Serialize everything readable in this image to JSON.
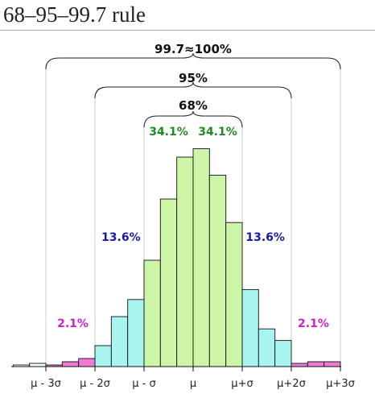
{
  "page": {
    "title": "68–95–99.7 rule"
  },
  "chart_data": {
    "type": "bar",
    "title": "",
    "xlabel": "",
    "ylabel": "",
    "x_ticks": [
      "μ - 3σ",
      "μ - 2σ",
      "μ - σ",
      "μ",
      "μ+σ",
      "μ+2σ",
      "μ+3σ"
    ],
    "x_range_sigma": [
      -3.6,
      3.6
    ],
    "bin_width_sigma": 0.333,
    "bins": [
      {
        "lo": -3.667,
        "hi": -3.333,
        "value": 0.5,
        "zone": "beyond3"
      },
      {
        "lo": -3.333,
        "hi": -3.0,
        "value": 1.0,
        "zone": "beyond3"
      },
      {
        "lo": -3.0,
        "hi": -2.667,
        "value": 0.5,
        "zone": "tail"
      },
      {
        "lo": -2.667,
        "hi": -2.333,
        "value": 1.5,
        "zone": "tail"
      },
      {
        "lo": -2.333,
        "hi": -2.0,
        "value": 2.5,
        "zone": "tail"
      },
      {
        "lo": -2.0,
        "hi": -1.667,
        "value": 6.5,
        "zone": "two"
      },
      {
        "lo": -1.667,
        "hi": -1.333,
        "value": 15.5,
        "zone": "two"
      },
      {
        "lo": -1.333,
        "hi": -1.0,
        "value": 20.8,
        "zone": "two"
      },
      {
        "lo": -1.0,
        "hi": -0.667,
        "value": 33.0,
        "zone": "one"
      },
      {
        "lo": -0.667,
        "hi": -0.333,
        "value": 52.0,
        "zone": "one"
      },
      {
        "lo": -0.333,
        "hi": 0.0,
        "value": 65.0,
        "zone": "one"
      },
      {
        "lo": 0.0,
        "hi": 0.333,
        "value": 67.6,
        "zone": "one"
      },
      {
        "lo": 0.333,
        "hi": 0.667,
        "value": 59.4,
        "zone": "one"
      },
      {
        "lo": 0.667,
        "hi": 1.0,
        "value": 44.7,
        "zone": "one"
      },
      {
        "lo": 1.0,
        "hi": 1.333,
        "value": 23.9,
        "zone": "two"
      },
      {
        "lo": 1.333,
        "hi": 1.667,
        "value": 11.7,
        "zone": "two"
      },
      {
        "lo": 1.667,
        "hi": 2.0,
        "value": 8.1,
        "zone": "two"
      },
      {
        "lo": 2.0,
        "hi": 2.333,
        "value": 1.0,
        "zone": "tail"
      },
      {
        "lo": 2.333,
        "hi": 2.667,
        "value": 1.5,
        "zone": "tail"
      },
      {
        "lo": 2.667,
        "hi": 3.0,
        "value": 1.5,
        "zone": "tail"
      }
    ],
    "zone_colors": {
      "one": "#ccf5a8",
      "two": "#a8f5ef",
      "tail": "#ef7ad8",
      "beyond3": "#ffffff"
    },
    "annotations": {
      "one_left": "34.1%",
      "one_right": "34.1%",
      "two_left": "13.6%",
      "two_right": "13.6%",
      "three_left": "2.1%",
      "three_right": "2.1%"
    },
    "annotation_colors": {
      "one": "#1e8c1e",
      "two": "#1a1aa6",
      "three": "#cc22cc"
    },
    "brackets": [
      {
        "sigma": 3,
        "label": "99.7≈100%"
      },
      {
        "sigma": 2,
        "label": "95%"
      },
      {
        "sigma": 1,
        "label": "68%"
      }
    ],
    "grid": false,
    "legend": "none"
  }
}
